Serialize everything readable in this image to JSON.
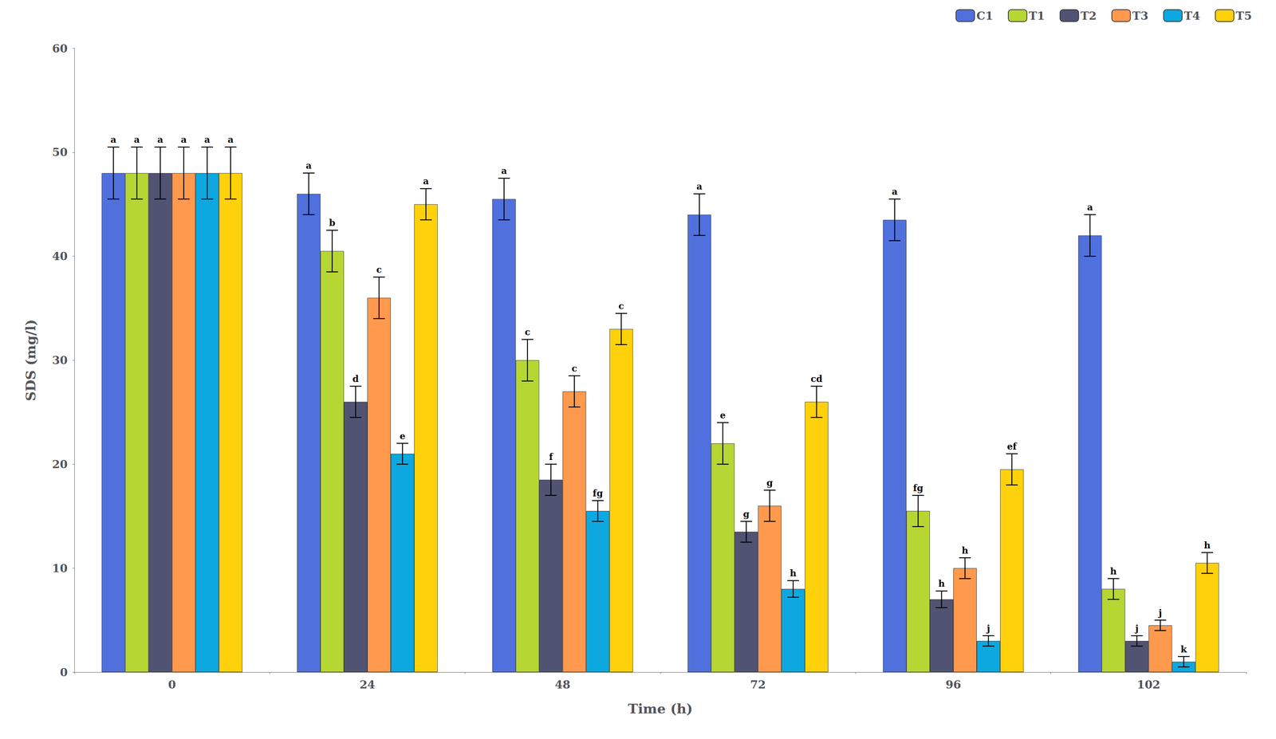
{
  "chart_data": {
    "type": "bar",
    "xlabel": "Time (h)",
    "ylabel": "SDS (mg/l)",
    "categories": [
      "0",
      "24",
      "48",
      "72",
      "96",
      "102"
    ],
    "series": [
      {
        "name": "C1",
        "values": [
          48,
          46,
          45.5,
          44,
          43.5,
          42
        ],
        "errors": [
          2.5,
          2.0,
          2.0,
          2.0,
          2.0,
          2.0
        ],
        "annotations": [
          "a",
          "a",
          "a",
          "a",
          "a",
          "a"
        ]
      },
      {
        "name": "T1",
        "values": [
          48,
          40.5,
          30,
          22,
          15.5,
          8
        ],
        "errors": [
          2.5,
          2.0,
          2.0,
          2.0,
          1.5,
          1.0
        ],
        "annotations": [
          "a",
          "b",
          "c",
          "e",
          "fg",
          "h"
        ]
      },
      {
        "name": "T2",
        "values": [
          48,
          26,
          18.5,
          13.5,
          7,
          3
        ],
        "errors": [
          2.5,
          1.5,
          1.5,
          1.0,
          0.8,
          0.5
        ],
        "annotations": [
          "a",
          "d",
          "f",
          "g",
          "h",
          "j"
        ]
      },
      {
        "name": "T3",
        "values": [
          48,
          36,
          27,
          16,
          10,
          4.5
        ],
        "errors": [
          2.5,
          2.0,
          1.5,
          1.5,
          1.0,
          0.5
        ],
        "annotations": [
          "a",
          "c",
          "c",
          "g",
          "h",
          "j"
        ]
      },
      {
        "name": "T4",
        "values": [
          48,
          21,
          15.5,
          8,
          3,
          1
        ],
        "errors": [
          2.5,
          1.0,
          1.0,
          0.8,
          0.5,
          0.5
        ],
        "annotations": [
          "a",
          "e",
          "fg",
          "h",
          "j",
          "k"
        ]
      },
      {
        "name": "T5",
        "values": [
          48,
          45,
          33,
          26,
          19.5,
          10.5
        ],
        "errors": [
          2.5,
          1.5,
          1.5,
          1.5,
          1.5,
          1.0
        ],
        "annotations": [
          "a",
          "a",
          "c",
          "cd",
          "ef",
          "h"
        ]
      }
    ],
    "ylim": [
      0,
      60
    ],
    "yticks": [
      0,
      10,
      20,
      30,
      40,
      50,
      60
    ],
    "grid": false,
    "legend": "upper right"
  }
}
